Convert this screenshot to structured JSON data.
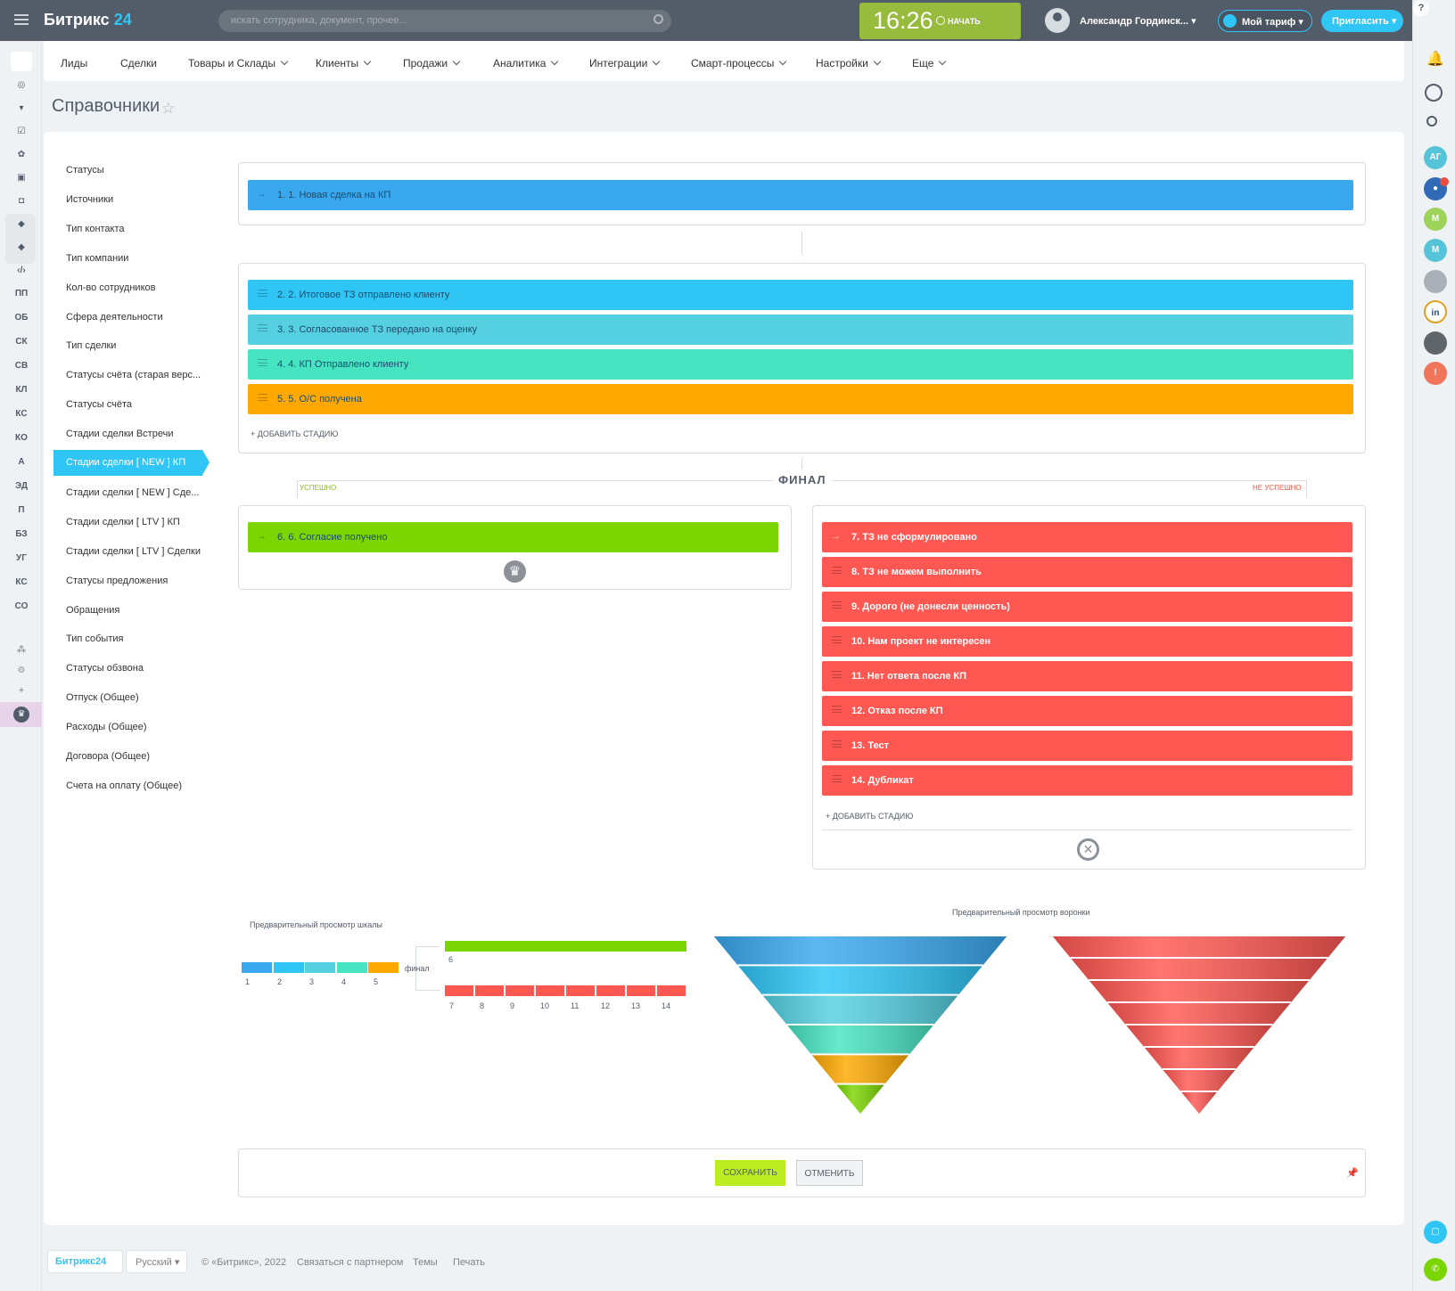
{
  "header": {
    "logo_text": "Битрикс",
    "logo_num": "24",
    "search_placeholder": "искать сотрудника, документ, прочее...",
    "time": "16:26",
    "start_label": "НАЧАТЬ",
    "user_name": "Александр Гординск...",
    "tariff_label": "Мой тариф",
    "invite_label": "Пригласить",
    "help": "?"
  },
  "menu": [
    {
      "label": "Лиды",
      "dropdown": false
    },
    {
      "label": "Сделки",
      "dropdown": false
    },
    {
      "label": "Товары и Склады",
      "dropdown": true
    },
    {
      "label": "Клиенты",
      "dropdown": true
    },
    {
      "label": "Продажи",
      "dropdown": true
    },
    {
      "label": "Аналитика",
      "dropdown": true
    },
    {
      "label": "Интеграции",
      "dropdown": true
    },
    {
      "label": "Смарт-процессы",
      "dropdown": true
    },
    {
      "label": "Настройки",
      "dropdown": true
    },
    {
      "label": "Еще",
      "dropdown": true
    }
  ],
  "page_title": "Справочники",
  "sidebar": {
    "items": [
      "Статусы",
      "Источники",
      "Тип контакта",
      "Тип компании",
      "Кол-во сотрудников",
      "Сфера деятельности",
      "Тип сделки",
      "Статусы счёта (старая верс...",
      "Статусы счёта",
      "Стадии сделки Встречи",
      "Стадии сделки [ NEW ] КП",
      "Стадии сделки [ NEW ] Сде...",
      "Стадии сделки [ LTV ] КП",
      "Стадии сделки [ LTV ] Сделки",
      "Статусы предложения",
      "Обращения",
      "Тип события",
      "Статусы обзвона",
      "Отпуск (Общее)",
      "Расходы (Общее)",
      "Договора (Общее)",
      "Счета на оплату (Общее)"
    ],
    "active_index": 10
  },
  "stages": {
    "initial": {
      "label": "1. 1. Новая сделка на КП",
      "color": "#39a8ef"
    },
    "process": [
      {
        "label": "2. 2. Итоговое ТЗ отправлено клиенту",
        "color": "#2fc6f6"
      },
      {
        "label": "3. 3. Согласованное ТЗ передано на оценку",
        "color": "#55d0e0"
      },
      {
        "label": "4. 4. КП Отправлено клиенту",
        "color": "#47e4c2"
      },
      {
        "label": "5. 5. О/С получена",
        "color": "#ffa900"
      }
    ],
    "add_stage": "+ ДОБАВИТЬ СТАДИЮ",
    "final_title": "ФИНАЛ",
    "success_label": "УСПЕШНО",
    "fail_label": "НЕ УСПЕШНО",
    "success": {
      "label": "6. 6. Согласие получено",
      "color": "#7bd500"
    },
    "fail_color": "#ff5752",
    "fail": [
      "7. ТЗ не сформулировано",
      "8. ТЗ не можем выполнить",
      "9. Дорого (не донесли ценность)",
      "10. Нам проект не интересен",
      "11. Нет ответа после КП",
      "12. Отказ после КП",
      "13. Тест",
      "14. Дубликат"
    ],
    "add_stage_fail": "+ ДОБАВИТЬ СТАДИЮ"
  },
  "preview": {
    "scale_title": "Предварительный просмотр шкалы",
    "funnel_title": "Предварительный просмотр воронки",
    "final_word": "финал",
    "scale_nums": [
      "1",
      "2",
      "3",
      "4",
      "5"
    ],
    "success_num": "6",
    "fail_nums": [
      "7",
      "8",
      "9",
      "10",
      "11",
      "12",
      "13",
      "14"
    ]
  },
  "buttons": {
    "save": "СОХРАНИТЬ",
    "cancel": "ОТМЕНИТЬ"
  },
  "footer": {
    "logo": "Битрикс24",
    "lang": "Русский",
    "copyright": "© «Битрикс», 2022",
    "partner": "Связаться с партнером",
    "themes": "Темы",
    "print": "Печать"
  },
  "left_icons": [
    "ПП",
    "ОБ",
    "СК",
    "СВ",
    "КЛ",
    "КС",
    "КО",
    "А",
    "ЭД",
    "П",
    "БЗ",
    "УГ",
    "КС",
    "СО"
  ],
  "right_avatars": [
    {
      "text": "АГ",
      "color": "#55c4d8"
    },
    {
      "text": "М",
      "color": "#9dd35a"
    },
    {
      "text": "М",
      "color": "#55c4d8"
    },
    {
      "text": "!",
      "color": "#f0755b"
    }
  ],
  "colors": {
    "accent": "#2fc6f6",
    "topbar": "#535c69",
    "save": "#bbed21"
  }
}
